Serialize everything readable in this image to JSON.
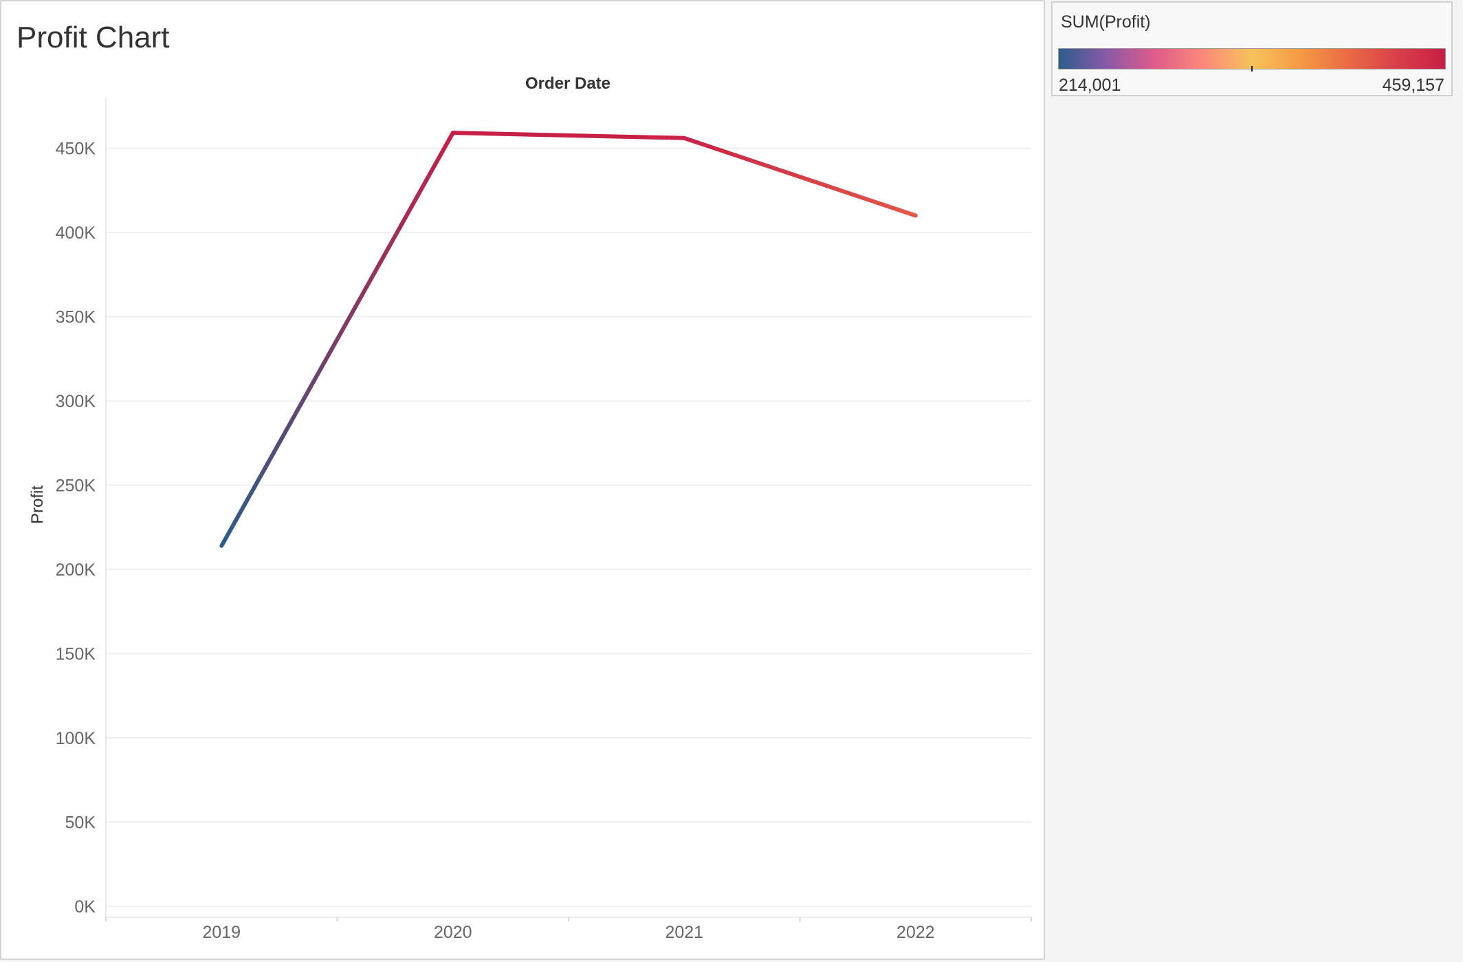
{
  "chart_data": {
    "type": "line",
    "title": "Profit Chart",
    "top_axis_label": "Order Date",
    "ylabel": "Profit",
    "xlabel": "",
    "categories": [
      "2019",
      "2020",
      "2021",
      "2022"
    ],
    "series": [
      {
        "values": [
          214001,
          459157,
          456000,
          410000
        ]
      }
    ],
    "ylim": [
      0,
      480000
    ],
    "y_ticks": [
      0,
      50000,
      100000,
      150000,
      200000,
      250000,
      300000,
      350000,
      400000,
      450000
    ],
    "y_tick_labels": [
      "0K",
      "50K",
      "100K",
      "150K",
      "200K",
      "250K",
      "300K",
      "350K",
      "400K",
      "450K"
    ],
    "grid": true,
    "color_legend": {
      "title": "SUM(Profit)",
      "min_label": "214,001",
      "max_label": "459,157",
      "min": 214001,
      "max": 459157,
      "stops": [
        "#2c5d8a",
        "#8a5aa8",
        "#e05c8a",
        "#fb8a7a",
        "#f6c25a",
        "#f59a45",
        "#ea6a45",
        "#d9404a",
        "#c71e45"
      ],
      "legend_placement": "right"
    }
  }
}
